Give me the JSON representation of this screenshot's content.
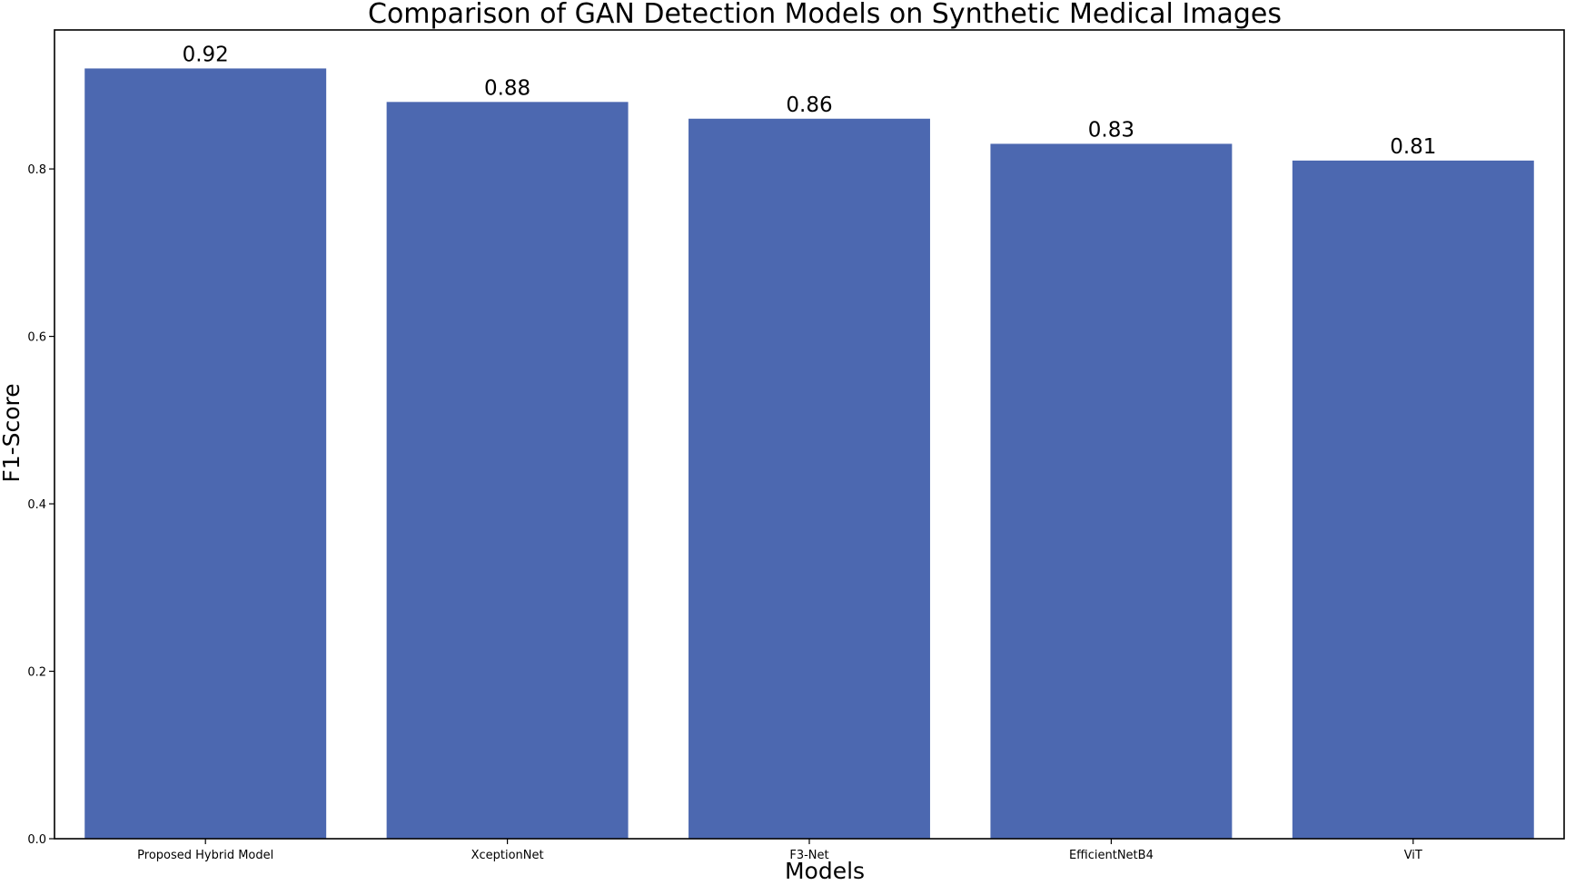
{
  "chart_data": {
    "type": "bar",
    "title": "Comparison of GAN Detection Models on Synthetic Medical Images",
    "xlabel": "Models",
    "ylabel": "F1-Score",
    "categories": [
      "Proposed Hybrid Model",
      "XceptionNet",
      "F3-Net",
      "EfficientNetB4",
      "ViT"
    ],
    "values": [
      0.92,
      0.88,
      0.86,
      0.83,
      0.81
    ],
    "value_labels": [
      "0.92",
      "0.88",
      "0.86",
      "0.83",
      "0.81"
    ],
    "ylim": [
      0,
      0.966
    ],
    "yticks": [
      0.0,
      0.2,
      0.4,
      0.6,
      0.8
    ],
    "ytick_labels": [
      "0.0",
      "0.2",
      "0.4",
      "0.6",
      "0.8"
    ],
    "grid": false,
    "legend": "none",
    "bar_color": "#4c68b0"
  }
}
